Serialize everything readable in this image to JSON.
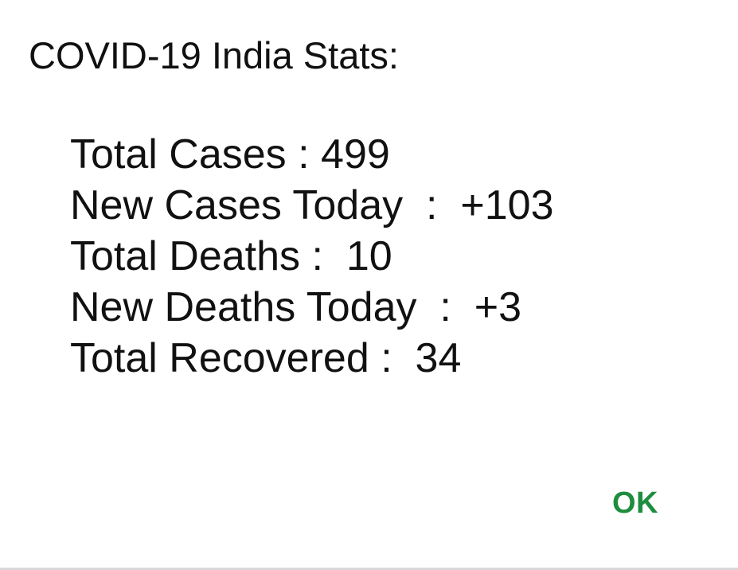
{
  "dialog": {
    "title": "COVID-19 India Stats:",
    "stats": [
      {
        "text": "Total Cases : 499"
      },
      {
        "text": "New Cases Today  :  +103"
      },
      {
        "text": "Total Deaths :  10"
      },
      {
        "text": "New Deaths Today  :  +3"
      },
      {
        "text": "Total Recovered :  34"
      }
    ],
    "ok_label": "OK"
  },
  "colors": {
    "accent": "#1e8e3e",
    "text": "#111111",
    "background": "#ffffff"
  }
}
